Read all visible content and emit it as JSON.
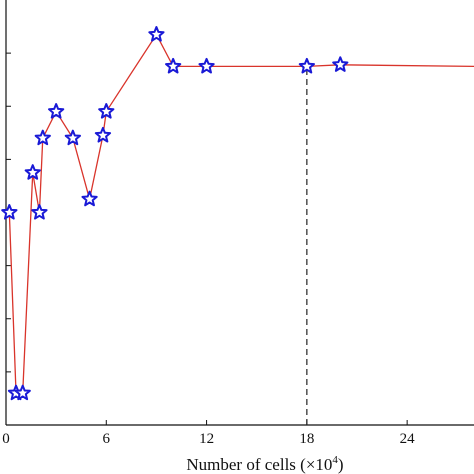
{
  "chart_data": {
    "type": "line",
    "title": "",
    "xlabel": "Number of cells (×10",
    "xlabel_sup": "4",
    "xlabel_close": ")",
    "ylabel": "",
    "xlim": [
      0,
      28
    ],
    "x_ticks": [
      0,
      6,
      12,
      18,
      24
    ],
    "x_tick_labels": [
      "0",
      "6",
      "12",
      "18",
      "24"
    ],
    "ylim": [
      0,
      8
    ],
    "y_ticks": [
      1,
      2,
      3,
      4,
      5,
      6,
      7
    ],
    "grid": false,
    "legend": "none",
    "line_color": "#d9342b",
    "marker": "star",
    "marker_color": "#1a1ad6",
    "marker_fill": "#ffffff",
    "series": [
      {
        "x": [
          0.2,
          0.6,
          1.0,
          1.6,
          2.0,
          2.2,
          3.0,
          4.0,
          5.0,
          5.8,
          6.0,
          9.0,
          10.0,
          12.0,
          18.0,
          20.0,
          28.0
        ],
        "y": [
          4.0,
          0.6,
          0.6,
          4.75,
          4.0,
          5.4,
          5.9,
          5.4,
          4.25,
          5.45,
          5.9,
          7.35,
          6.75,
          6.75,
          6.75,
          6.78,
          6.75
        ],
        "markers": [
          true,
          true,
          true,
          true,
          true,
          true,
          true,
          true,
          true,
          true,
          true,
          true,
          true,
          true,
          true,
          true,
          false
        ]
      }
    ],
    "annotations": [
      {
        "type": "vertical-dashed-line",
        "x": 18,
        "y_from": 0,
        "y_to": 6.75,
        "color": "#222222"
      }
    ]
  }
}
